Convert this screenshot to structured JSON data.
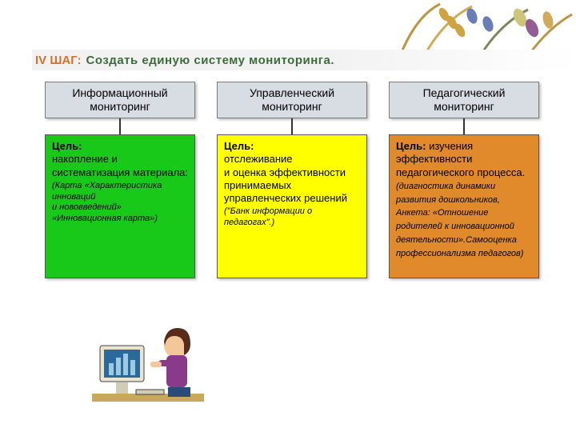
{
  "slide": {
    "title_step": "IV  ШАГ:",
    "title_rest": "Создать единую  систему  мониторинга.",
    "title_step_color": "#d96f2a",
    "title_rest_color": "#3d6b3d"
  },
  "columns": [
    {
      "header": "Информационный мониторинг",
      "header_bg": "#d7dde3",
      "goal_bg": "#19c919",
      "goal_label": "Цель:",
      "goal_main": "накопление и систематизация материала:",
      "goal_note": "(Карта «Характеристика инноваций\nи нововведений»\n«Инновационная карта»)"
    },
    {
      "header": "Управленческий мониторинг",
      "header_bg": "#d7dde3",
      "goal_bg": "#ffff00",
      "goal_label": "Цель:",
      "goal_main": "отслеживание\nи оценка эффективности принимаемых управленческих решений",
      "goal_note": "(\"Банк информации о педагогах\".)"
    },
    {
      "header": "Педагогический мониторинг",
      "header_bg": "#d7dde3",
      "goal_bg": "#e08a2c",
      "goal_label": "Цель:",
      "goal_label_suffix": ":",
      "goal_main": "изучения эффективности педагогического процесса.",
      "goal_note": "(диагностика динамики развития дошкольников, Анкета: «Отношение родителей к инновационной деятельности».Самооценка профессионализма педагогов)"
    }
  ],
  "styling": {
    "slide_width": 720,
    "slide_height": 540,
    "header_border": "#7a7a7a",
    "shadow": "rgba(0,0,0,0.25)",
    "connector_color": "#333333",
    "font_family": "Arial",
    "header_fontsize": 14,
    "goal_fontsize": 13,
    "note_fontsize": 11
  }
}
